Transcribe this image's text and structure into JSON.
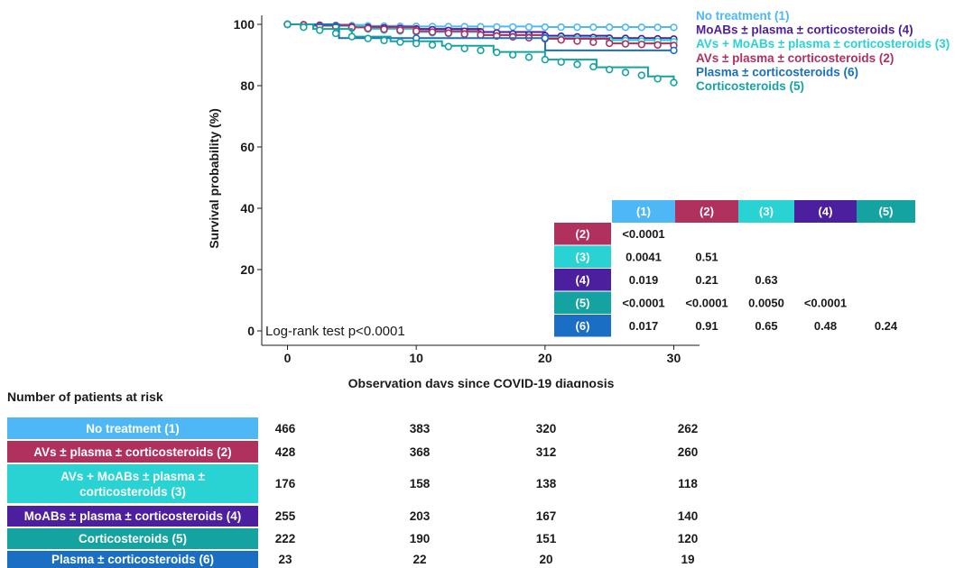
{
  "chart_data": {
    "type": "line",
    "subtype": "kaplan-meier",
    "xlabel": "Observation days since COVID-19 diagnosis",
    "ylabel": "Survival probability (%)",
    "xlim": [
      -2,
      32
    ],
    "ylim": [
      0,
      100
    ],
    "x_ticks": [
      0,
      10,
      20,
      30
    ],
    "y_ticks": [
      0,
      20,
      40,
      60,
      80,
      100
    ],
    "grid": false,
    "annotation": "Log-rank test p<0.0001",
    "series": [
      {
        "name": "No treatment (1)",
        "color": "#4db8f5",
        "legend_order": 0,
        "x": [
          0,
          2,
          6,
          10,
          20,
          30
        ],
        "y": [
          100,
          99.8,
          99.5,
          99.3,
          99.1,
          99.0
        ]
      },
      {
        "name": "MoABs ± plasma ± corticosteroids (4)",
        "color": "#4b1f9e",
        "legend_order": 1,
        "x": [
          0,
          2,
          5,
          10,
          15,
          20,
          25,
          30
        ],
        "y": [
          100,
          99.8,
          99.2,
          98.5,
          97.5,
          96.3,
          95.5,
          95.2
        ]
      },
      {
        "name": "AVs + MoABs ± plasma ± corticosteroids (3)",
        "color": "#29d3d3",
        "legend_order": 2,
        "x": [
          0,
          2,
          6,
          10,
          15,
          20,
          25,
          30
        ],
        "y": [
          100,
          99.5,
          98.5,
          97.5,
          96.5,
          95.6,
          94.8,
          94.3
        ]
      },
      {
        "name": "AVs ± plasma ± corticosteroids (2)",
        "color": "#b0305e",
        "legend_order": 3,
        "x": [
          0,
          2,
          5,
          10,
          15,
          20,
          25,
          30
        ],
        "y": [
          100,
          99.7,
          99,
          97.8,
          96.5,
          95.3,
          93.8,
          93.1
        ]
      },
      {
        "name": "Plasma ± corticosteroids (6)",
        "color": "#1a6fc4",
        "legend_order": 4,
        "x": [
          0,
          4,
          20,
          20.01,
          30
        ],
        "y": [
          100,
          95.5,
          95.5,
          91.5,
          91.5
        ]
      },
      {
        "name": "Corticosteroids (5)",
        "color": "#14a3a0",
        "legend_order": 5,
        "x": [
          0,
          2,
          5,
          8,
          12,
          16,
          20,
          24,
          28,
          30
        ],
        "y": [
          100,
          98.5,
          96,
          94.5,
          93,
          91,
          88.5,
          86,
          83,
          81
        ]
      }
    ],
    "pvalue_table": {
      "column_headers": [
        "(1)",
        "(2)",
        "(3)",
        "(4)",
        "(5)"
      ],
      "column_colors": [
        "#4db8f5",
        "#b0305e",
        "#29d3d3",
        "#4b1f9e",
        "#14a3a0"
      ],
      "row_headers": [
        "(2)",
        "(3)",
        "(4)",
        "(5)",
        "(6)"
      ],
      "row_colors": [
        "#b0305e",
        "#29d3d3",
        "#4b1f9e",
        "#14a3a0",
        "#1a6fc4"
      ],
      "values": [
        [
          "<0.0001"
        ],
        [
          "0.0041",
          "0.51"
        ],
        [
          "0.019",
          "0.21",
          "0.63"
        ],
        [
          "<0.0001",
          "<0.0001",
          "0.0050",
          "<0.0001"
        ],
        [
          "0.017",
          "0.91",
          "0.65",
          "0.48",
          "0.24"
        ]
      ]
    }
  },
  "risk_table": {
    "title": "Number of patients at risk",
    "rows": [
      {
        "label": "No treatment (1)",
        "color": "#4db8f5",
        "values": [
          "466",
          "383",
          "320",
          "262"
        ]
      },
      {
        "label": "AVs ± plasma ± corticosteroids (2)",
        "color": "#b0305e",
        "values": [
          "428",
          "368",
          "312",
          "260"
        ]
      },
      {
        "label": "AVs + MoABs ± plasma ± corticosteroids (3)",
        "color": "#29d3d3",
        "values": [
          "176",
          "158",
          "138",
          "118"
        ]
      },
      {
        "label": "MoABs ± plasma ± corticosteroids (4)",
        "color": "#4b1f9e",
        "values": [
          "255",
          "203",
          "167",
          "140"
        ]
      },
      {
        "label": "Corticosteroids (5)",
        "color": "#14a3a0",
        "values": [
          "222",
          "190",
          "151",
          "120"
        ]
      },
      {
        "label": "Plasma ± corticosteroids (6)",
        "color": "#1a6fc4",
        "values": [
          "23",
          "22",
          "20",
          "19"
        ]
      }
    ]
  }
}
